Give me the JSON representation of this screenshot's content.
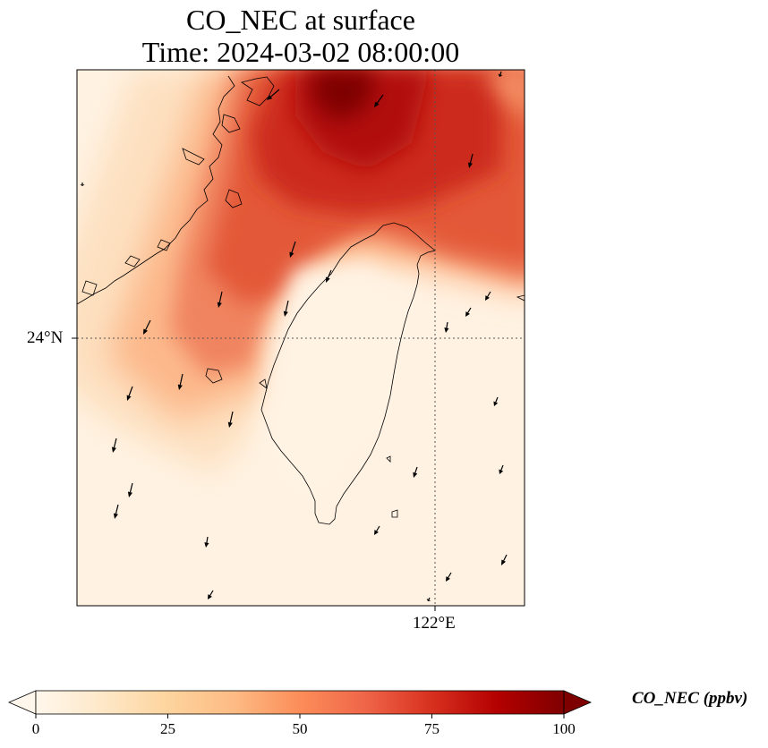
{
  "title": {
    "line1": "CO_NEC at surface",
    "line2": "Time: 2024-03-02 08:00:00"
  },
  "map": {
    "field": "CO_NEC",
    "level": "surface",
    "region": "Taiwan Strait / Taiwan",
    "gridlines": {
      "lat": [
        {
          "value": 24,
          "label": "24°N"
        }
      ],
      "lon": [
        {
          "value": 122,
          "label": "122°E"
        }
      ],
      "style": "dotted"
    },
    "wind_vectors": {
      "visible": true,
      "color": "#000000",
      "predominant_direction": "north-northeasterly (blowing toward south-southwest)"
    },
    "concentration_pattern": "High CO_NEC (75-100 ppbv) over the northern Taiwan Strait and north of Taiwan, decreasing to near 0 ppbv over southern strait, Taiwan island and surrounding seas"
  },
  "colorbar": {
    "label": "CO_NEC (ppbv)",
    "colormap": "OrRd",
    "min": 0,
    "max": 100,
    "extend": "both",
    "ticks": [
      {
        "value": 0,
        "label": "0"
      },
      {
        "value": 25,
        "label": "25"
      },
      {
        "value": 50,
        "label": "50"
      },
      {
        "value": 75,
        "label": "75"
      },
      {
        "value": 100,
        "label": "100"
      }
    ],
    "colors": [
      "#fff7ec",
      "#fee8c8",
      "#fdd49e",
      "#fdbb84",
      "#fc8d59",
      "#ef6548",
      "#d7301f",
      "#b30000",
      "#7f0000"
    ]
  }
}
